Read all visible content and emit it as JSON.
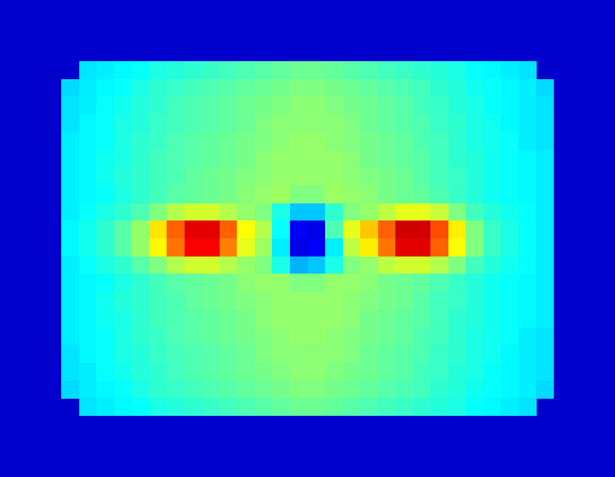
{
  "chart_data": {
    "type": "heatmap",
    "tick_labels": false,
    "color_range": [
      0,
      1
    ],
    "cells": [
      [
        null,
        0.35,
        0.36,
        0.37,
        0.38,
        0.4,
        0.41,
        0.42,
        0.43,
        0.44,
        0.45,
        0.46,
        0.47,
        0.48,
        0.48,
        0.47,
        0.46,
        0.45,
        0.44,
        0.43,
        0.42,
        0.41,
        0.4,
        0.38,
        0.37,
        0.36,
        0.35,
        null
      ],
      [
        0.34,
        0.36,
        0.37,
        0.38,
        0.4,
        0.42,
        0.43,
        0.44,
        0.45,
        0.46,
        0.47,
        0.48,
        0.49,
        0.5,
        0.5,
        0.49,
        0.48,
        0.47,
        0.46,
        0.45,
        0.44,
        0.42,
        0.41,
        0.39,
        0.38,
        0.37,
        0.36,
        0.34
      ],
      [
        0.35,
        0.36,
        0.38,
        0.39,
        0.41,
        0.42,
        0.44,
        0.45,
        0.46,
        0.47,
        0.48,
        0.49,
        0.5,
        0.51,
        0.51,
        0.5,
        0.49,
        0.48,
        0.47,
        0.46,
        0.44,
        0.43,
        0.41,
        0.4,
        0.38,
        0.37,
        0.36,
        0.35
      ],
      [
        0.35,
        0.37,
        0.38,
        0.4,
        0.41,
        0.43,
        0.44,
        0.45,
        0.46,
        0.47,
        0.48,
        0.5,
        0.51,
        0.51,
        0.51,
        0.51,
        0.5,
        0.48,
        0.47,
        0.46,
        0.45,
        0.43,
        0.42,
        0.4,
        0.39,
        0.37,
        0.36,
        0.35
      ],
      [
        0.36,
        0.37,
        0.38,
        0.4,
        0.42,
        0.43,
        0.45,
        0.46,
        0.47,
        0.48,
        0.49,
        0.5,
        0.51,
        0.52,
        0.52,
        0.51,
        0.5,
        0.49,
        0.48,
        0.47,
        0.45,
        0.44,
        0.42,
        0.4,
        0.39,
        0.38,
        0.36,
        0.35
      ],
      [
        0.36,
        0.37,
        0.39,
        0.4,
        0.42,
        0.44,
        0.45,
        0.46,
        0.47,
        0.48,
        0.49,
        0.51,
        0.52,
        0.52,
        0.52,
        0.52,
        0.51,
        0.49,
        0.48,
        0.47,
        0.46,
        0.44,
        0.42,
        0.41,
        0.39,
        0.38,
        0.37,
        0.36
      ],
      [
        0.36,
        0.37,
        0.39,
        0.41,
        0.42,
        0.44,
        0.45,
        0.47,
        0.48,
        0.49,
        0.5,
        0.51,
        0.52,
        0.52,
        0.52,
        0.52,
        0.51,
        0.5,
        0.49,
        0.48,
        0.46,
        0.44,
        0.43,
        0.41,
        0.39,
        0.38,
        0.37,
        0.36
      ],
      [
        0.36,
        0.37,
        0.38,
        0.4,
        0.42,
        0.44,
        0.46,
        0.47,
        0.48,
        0.49,
        0.51,
        0.52,
        0.53,
        0.5,
        0.5,
        0.53,
        0.52,
        0.51,
        0.49,
        0.48,
        0.47,
        0.45,
        0.43,
        0.41,
        0.39,
        0.38,
        0.37,
        0.36
      ],
      [
        0.36,
        0.38,
        0.4,
        0.42,
        0.45,
        0.5,
        0.55,
        0.58,
        0.58,
        0.55,
        0.52,
        0.5,
        0.4,
        0.32,
        0.32,
        0.42,
        0.5,
        0.52,
        0.56,
        0.6,
        0.6,
        0.57,
        0.5,
        0.44,
        0.41,
        0.39,
        0.38,
        0.36
      ],
      [
        0.37,
        0.39,
        0.42,
        0.46,
        0.52,
        0.65,
        0.78,
        0.9,
        0.9,
        0.78,
        0.62,
        0.55,
        0.38,
        0.12,
        0.1,
        0.45,
        0.6,
        0.68,
        0.78,
        0.92,
        0.92,
        0.8,
        0.64,
        0.5,
        0.43,
        0.4,
        0.38,
        0.36
      ],
      [
        0.37,
        0.39,
        0.42,
        0.46,
        0.52,
        0.63,
        0.76,
        0.88,
        0.88,
        0.75,
        0.6,
        0.53,
        0.36,
        0.1,
        0.12,
        0.36,
        0.56,
        0.64,
        0.76,
        0.9,
        0.9,
        0.78,
        0.62,
        0.5,
        0.43,
        0.4,
        0.38,
        0.36
      ],
      [
        0.36,
        0.38,
        0.4,
        0.42,
        0.46,
        0.5,
        0.55,
        0.58,
        0.58,
        0.55,
        0.52,
        0.5,
        0.4,
        0.3,
        0.32,
        0.4,
        0.5,
        0.52,
        0.56,
        0.58,
        0.58,
        0.55,
        0.5,
        0.44,
        0.41,
        0.39,
        0.38,
        0.36
      ],
      [
        0.36,
        0.37,
        0.38,
        0.4,
        0.42,
        0.44,
        0.46,
        0.47,
        0.48,
        0.49,
        0.51,
        0.52,
        0.52,
        0.5,
        0.5,
        0.52,
        0.52,
        0.51,
        0.49,
        0.48,
        0.47,
        0.45,
        0.43,
        0.41,
        0.39,
        0.38,
        0.37,
        0.36
      ],
      [
        0.36,
        0.37,
        0.39,
        0.41,
        0.42,
        0.44,
        0.45,
        0.47,
        0.48,
        0.49,
        0.5,
        0.51,
        0.52,
        0.52,
        0.52,
        0.52,
        0.51,
        0.5,
        0.49,
        0.48,
        0.46,
        0.44,
        0.43,
        0.41,
        0.39,
        0.38,
        0.37,
        0.36
      ],
      [
        0.36,
        0.37,
        0.39,
        0.4,
        0.42,
        0.44,
        0.45,
        0.46,
        0.47,
        0.48,
        0.49,
        0.51,
        0.52,
        0.52,
        0.52,
        0.52,
        0.51,
        0.49,
        0.48,
        0.47,
        0.46,
        0.44,
        0.42,
        0.41,
        0.39,
        0.38,
        0.37,
        0.36
      ],
      [
        0.36,
        0.37,
        0.38,
        0.4,
        0.42,
        0.43,
        0.45,
        0.46,
        0.47,
        0.48,
        0.49,
        0.5,
        0.51,
        0.52,
        0.52,
        0.51,
        0.5,
        0.49,
        0.48,
        0.47,
        0.45,
        0.44,
        0.42,
        0.4,
        0.39,
        0.38,
        0.36,
        0.35
      ],
      [
        0.35,
        0.37,
        0.38,
        0.4,
        0.41,
        0.43,
        0.44,
        0.45,
        0.46,
        0.47,
        0.48,
        0.5,
        0.51,
        0.51,
        0.51,
        0.51,
        0.5,
        0.48,
        0.47,
        0.46,
        0.45,
        0.43,
        0.42,
        0.4,
        0.39,
        0.37,
        0.36,
        0.35
      ],
      [
        0.35,
        0.36,
        0.38,
        0.39,
        0.41,
        0.42,
        0.44,
        0.45,
        0.46,
        0.47,
        0.48,
        0.49,
        0.5,
        0.51,
        0.51,
        0.5,
        0.49,
        0.48,
        0.47,
        0.46,
        0.44,
        0.43,
        0.41,
        0.4,
        0.38,
        0.37,
        0.36,
        0.35
      ],
      [
        0.34,
        0.36,
        0.37,
        0.38,
        0.4,
        0.42,
        0.43,
        0.44,
        0.45,
        0.46,
        0.47,
        0.48,
        0.49,
        0.5,
        0.5,
        0.49,
        0.48,
        0.47,
        0.46,
        0.45,
        0.44,
        0.42,
        0.41,
        0.39,
        0.38,
        0.37,
        0.36,
        0.34
      ],
      [
        null,
        0.35,
        0.36,
        0.37,
        0.38,
        0.4,
        0.41,
        0.42,
        0.43,
        0.44,
        0.45,
        0.46,
        0.47,
        0.48,
        0.48,
        0.47,
        0.46,
        0.45,
        0.44,
        0.43,
        0.42,
        0.41,
        0.4,
        0.38,
        0.37,
        0.36,
        0.35,
        null
      ]
    ]
  }
}
